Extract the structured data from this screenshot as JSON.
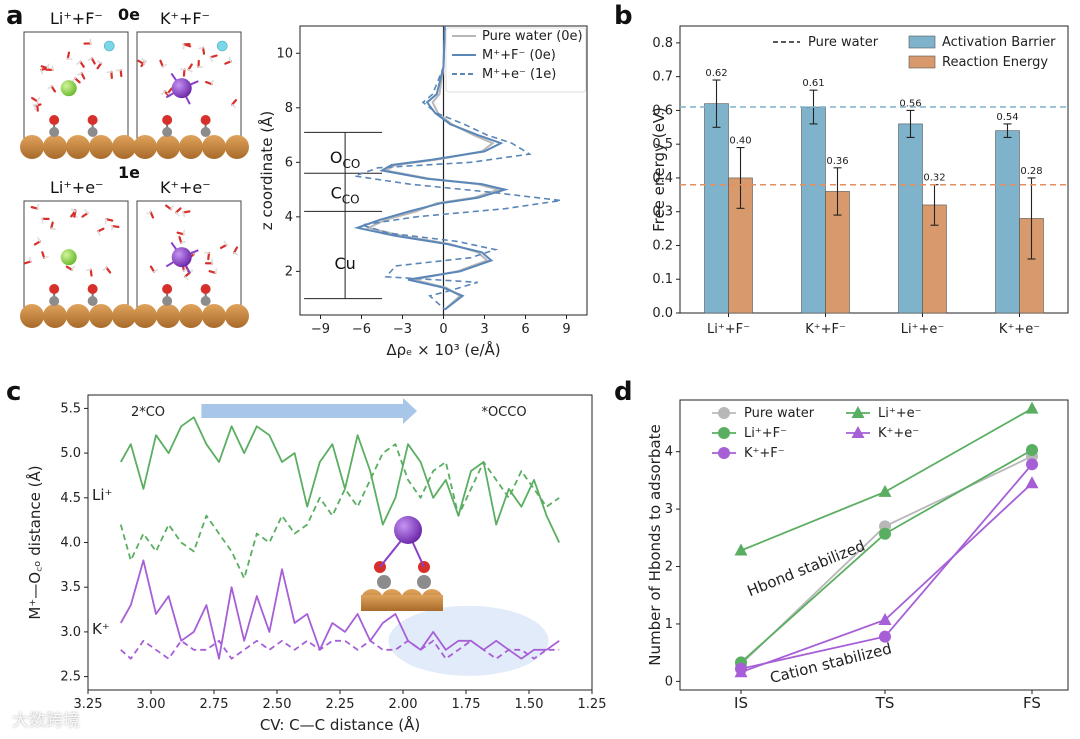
{
  "panel_labels": {
    "a": "a",
    "b": "b",
    "c": "c",
    "d": "d"
  },
  "panel_a": {
    "snapshot_titles": {
      "li_f": "Li⁺+F⁻",
      "k_f": "K⁺+F⁻",
      "li_e": "Li⁺+e⁻",
      "k_e": "K⁺+e⁻"
    },
    "charge_labels": {
      "zero": "0e",
      "one": "1e"
    },
    "colors": {
      "substrate": "#c8843a",
      "water_O": "#d7302a",
      "li": "#8dd64a",
      "k": "#8a3fc6",
      "f": "#7ad7e8",
      "C": "#8c8c8c"
    }
  },
  "watermark": "大数跨境",
  "chart_data": [
    {
      "id": "a_profile",
      "type": "line",
      "xlabel": "Δρₑ × 10³ (e/Å)",
      "ylabel": "z coordinate (Å)",
      "xlim": [
        -10.5,
        10.5
      ],
      "ylim": [
        0.4,
        11.0
      ],
      "xticks": [
        -9,
        -6,
        -3,
        0,
        3,
        6,
        9
      ],
      "xtick_labels": [
        "−9",
        "−6",
        "−3",
        "0",
        "3",
        "6",
        "9"
      ],
      "yticks": [
        2,
        4,
        6,
        8,
        10
      ],
      "region_labels": [
        {
          "text": "O",
          "sub": "CO",
          "z": 6.2
        },
        {
          "text": "C",
          "sub": "CO",
          "z": 4.9
        },
        {
          "text": "Cu",
          "sub": "",
          "z": 2.3
        }
      ],
      "region_boundaries": [
        1.0,
        4.2,
        5.6,
        7.1
      ],
      "legend_location": "top-right",
      "series": [
        {
          "name": "Pure water (0e)",
          "color": "#b8b8b8",
          "style": "solid",
          "points": [
            [
              0.1,
              11.0
            ],
            [
              0.0,
              9.5
            ],
            [
              -0.3,
              8.5
            ],
            [
              -0.8,
              8.2
            ],
            [
              -0.4,
              7.8
            ],
            [
              0.6,
              7.4
            ],
            [
              2.2,
              7.0
            ],
            [
              3.6,
              6.7
            ],
            [
              2.8,
              6.4
            ],
            [
              -0.5,
              6.1
            ],
            [
              -3.5,
              5.9
            ],
            [
              -4.2,
              5.7
            ],
            [
              -1.0,
              5.4
            ],
            [
              2.5,
              5.2
            ],
            [
              4.0,
              5.0
            ],
            [
              2.2,
              4.7
            ],
            [
              -0.5,
              4.5
            ],
            [
              -2.0,
              4.2
            ],
            [
              -4.2,
              3.9
            ],
            [
              -5.5,
              3.6
            ],
            [
              -3.0,
              3.3
            ],
            [
              0.5,
              3.0
            ],
            [
              2.5,
              2.7
            ],
            [
              3.2,
              2.4
            ],
            [
              1.0,
              2.0
            ],
            [
              -2.2,
              1.7
            ],
            [
              0.2,
              1.4
            ],
            [
              1.2,
              1.1
            ],
            [
              0.1,
              0.6
            ]
          ]
        },
        {
          "name": "M⁺+F⁻ (0e)",
          "color": "#5a86b8",
          "style": "solid",
          "points": [
            [
              0.1,
              11.0
            ],
            [
              0.0,
              9.5
            ],
            [
              -0.5,
              8.5
            ],
            [
              -1.2,
              8.2
            ],
            [
              -0.6,
              7.8
            ],
            [
              0.5,
              7.4
            ],
            [
              2.5,
              7.0
            ],
            [
              4.2,
              6.7
            ],
            [
              3.0,
              6.4
            ],
            [
              -0.8,
              6.1
            ],
            [
              -3.8,
              5.9
            ],
            [
              -4.5,
              5.7
            ],
            [
              -1.2,
              5.4
            ],
            [
              2.8,
              5.2
            ],
            [
              4.5,
              5.0
            ],
            [
              2.5,
              4.7
            ],
            [
              -0.2,
              4.5
            ],
            [
              -2.5,
              4.2
            ],
            [
              -4.6,
              3.9
            ],
            [
              -6.3,
              3.6
            ],
            [
              -3.5,
              3.3
            ],
            [
              0.3,
              3.0
            ],
            [
              2.8,
              2.7
            ],
            [
              3.5,
              2.4
            ],
            [
              1.2,
              2.0
            ],
            [
              -2.6,
              1.7
            ],
            [
              0.0,
              1.4
            ],
            [
              1.4,
              1.1
            ],
            [
              0.1,
              0.6
            ]
          ]
        },
        {
          "name": "M⁺+e⁻ (1e)",
          "color": "#5a86b8",
          "style": "dashed",
          "points": [
            [
              0.1,
              11.0
            ],
            [
              0.0,
              9.5
            ],
            [
              -0.8,
              8.5
            ],
            [
              -1.5,
              8.2
            ],
            [
              -0.5,
              7.8
            ],
            [
              1.5,
              7.4
            ],
            [
              3.2,
              7.0
            ],
            [
              5.0,
              6.7
            ],
            [
              6.3,
              6.3
            ],
            [
              2.0,
              6.0
            ],
            [
              -4.8,
              5.8
            ],
            [
              -6.5,
              5.5
            ],
            [
              -2.5,
              5.2
            ],
            [
              3.5,
              4.9
            ],
            [
              8.6,
              4.6
            ],
            [
              4.5,
              4.3
            ],
            [
              -2.0,
              4.0
            ],
            [
              -6.0,
              3.7
            ],
            [
              -4.0,
              3.4
            ],
            [
              1.0,
              3.1
            ],
            [
              3.8,
              2.8
            ],
            [
              2.0,
              2.5
            ],
            [
              -3.5,
              2.2
            ],
            [
              -4.2,
              1.8
            ],
            [
              2.5,
              1.6
            ],
            [
              0.5,
              1.3
            ],
            [
              -1.0,
              1.1
            ],
            [
              0.1,
              0.6
            ]
          ]
        }
      ]
    },
    {
      "id": "b_bars",
      "type": "bar",
      "ylabel": "Free energy (eV)",
      "ylim": [
        0.0,
        0.85
      ],
      "yticks": [
        0.0,
        0.1,
        0.2,
        0.3,
        0.4,
        0.5,
        0.6,
        0.7,
        0.8
      ],
      "ytick_labels": [
        "0.0",
        "0.1",
        "0.2",
        "0.3",
        "0.4",
        "0.5",
        "0.6",
        "0.7",
        "0.8"
      ],
      "categories": [
        "Li⁺+F⁻",
        "K⁺+F⁻",
        "Li⁺+e⁻",
        "K⁺+e⁻"
      ],
      "legend_location": "top",
      "series": [
        {
          "name": "Activation Barrier",
          "color": "#7fb3cc",
          "values": [
            0.62,
            0.61,
            0.56,
            0.54
          ],
          "errors": [
            0.07,
            0.05,
            0.04,
            0.02
          ],
          "labels": [
            "0.62",
            "0.61",
            "0.56",
            "0.54"
          ]
        },
        {
          "name": "Reaction Energy",
          "color": "#d89a6c",
          "values": [
            0.4,
            0.36,
            0.32,
            0.28
          ],
          "errors": [
            0.09,
            0.07,
            0.06,
            0.12
          ],
          "labels": [
            "0.40",
            "0.36",
            "0.32",
            "0.28"
          ]
        }
      ],
      "reference": {
        "name": "Pure water",
        "barrier": 0.61,
        "reaction": 0.38,
        "barrier_color": "#7fb3cc",
        "reaction_color": "#e58e5e"
      }
    },
    {
      "id": "c_distance",
      "type": "line",
      "xlabel": "CV: C—C distance (Å)",
      "ylabel": "M⁺—O꜀ₒ distance (Å)",
      "xlim": [
        3.25,
        1.25
      ],
      "ylim": [
        2.35,
        5.65
      ],
      "xticks": [
        3.25,
        3.0,
        2.75,
        2.5,
        2.25,
        2.0,
        1.75,
        1.5,
        1.25
      ],
      "xtick_labels": [
        "3.25",
        "3.00",
        "2.75",
        "2.50",
        "2.25",
        "2.00",
        "1.75",
        "1.50",
        "1.25"
      ],
      "yticks": [
        2.5,
        3.0,
        3.5,
        4.0,
        4.5,
        5.0,
        5.5
      ],
      "ytick_labels": [
        "2.5",
        "3.0",
        "3.5",
        "4.0",
        "4.5",
        "5.0",
        "5.5"
      ],
      "annotations": {
        "start": "2*CO",
        "end": "*OCCO",
        "li": "Li⁺",
        "k": "K⁺"
      },
      "colors": {
        "li": "#5aae61",
        "k": "#a65fd6",
        "arrow": "#a8c6e8",
        "shade": "#dbe6f7"
      },
      "series": [
        {
          "name": "Li⁺ solid",
          "color": "#5aae61",
          "style": "solid",
          "x": [
            3.12,
            3.08,
            3.03,
            2.98,
            2.93,
            2.88,
            2.83,
            2.78,
            2.73,
            2.68,
            2.63,
            2.58,
            2.53,
            2.48,
            2.43,
            2.38,
            2.33,
            2.28,
            2.23,
            2.18,
            2.13,
            2.08,
            2.03,
            1.98,
            1.93,
            1.88,
            1.83,
            1.78,
            1.73,
            1.68,
            1.63,
            1.58,
            1.53,
            1.48,
            1.43,
            1.38
          ],
          "y": [
            4.9,
            5.1,
            4.6,
            5.2,
            5.0,
            5.3,
            5.4,
            5.1,
            4.9,
            5.3,
            5.0,
            5.3,
            5.2,
            4.9,
            5.0,
            4.4,
            4.9,
            5.1,
            4.6,
            5.2,
            4.8,
            4.2,
            4.5,
            5.1,
            4.9,
            4.5,
            4.7,
            4.3,
            4.8,
            4.9,
            4.2,
            4.6,
            4.4,
            4.7,
            4.3,
            4.0
          ]
        },
        {
          "name": "Li⁺ dashed",
          "color": "#5aae61",
          "style": "dashed",
          "x": [
            3.12,
            3.08,
            3.03,
            2.98,
            2.93,
            2.88,
            2.83,
            2.78,
            2.73,
            2.68,
            2.63,
            2.58,
            2.53,
            2.48,
            2.43,
            2.38,
            2.33,
            2.28,
            2.23,
            2.18,
            2.13,
            2.08,
            2.03,
            1.98,
            1.93,
            1.88,
            1.83,
            1.78,
            1.73,
            1.68,
            1.63,
            1.58,
            1.53,
            1.48,
            1.43,
            1.38
          ],
          "y": [
            4.2,
            3.8,
            4.1,
            3.9,
            4.2,
            4.0,
            3.9,
            4.3,
            4.1,
            3.9,
            3.6,
            4.1,
            4.0,
            4.3,
            4.1,
            4.2,
            4.5,
            4.3,
            4.6,
            4.4,
            4.7,
            5.0,
            5.1,
            4.7,
            4.5,
            4.8,
            4.9,
            4.3,
            4.6,
            4.9,
            4.7,
            4.5,
            4.8,
            4.6,
            4.4,
            4.5
          ]
        },
        {
          "name": "K⁺ solid",
          "color": "#a65fd6",
          "style": "solid",
          "x": [
            3.12,
            3.08,
            3.03,
            2.98,
            2.93,
            2.88,
            2.83,
            2.78,
            2.73,
            2.68,
            2.63,
            2.58,
            2.53,
            2.48,
            2.43,
            2.38,
            2.33,
            2.28,
            2.23,
            2.18,
            2.13,
            2.08,
            2.03,
            1.98,
            1.93,
            1.88,
            1.83,
            1.78,
            1.73,
            1.68,
            1.63,
            1.58,
            1.53,
            1.48,
            1.43,
            1.38
          ],
          "y": [
            3.1,
            3.3,
            3.8,
            3.2,
            3.4,
            2.9,
            3.0,
            3.3,
            2.7,
            3.5,
            2.9,
            3.4,
            3.0,
            3.7,
            3.1,
            3.2,
            2.8,
            3.1,
            3.0,
            3.2,
            2.9,
            3.1,
            3.2,
            2.9,
            2.8,
            3.0,
            2.8,
            2.9,
            2.9,
            2.8,
            2.9,
            2.8,
            2.7,
            2.8,
            2.8,
            2.9
          ]
        },
        {
          "name": "K⁺ dashed",
          "color": "#a65fd6",
          "style": "dashed",
          "x": [
            3.12,
            3.08,
            3.03,
            2.98,
            2.93,
            2.88,
            2.83,
            2.78,
            2.73,
            2.68,
            2.63,
            2.58,
            2.53,
            2.48,
            2.43,
            2.38,
            2.33,
            2.28,
            2.23,
            2.18,
            2.13,
            2.08,
            2.03,
            1.98,
            1.93,
            1.88,
            1.83,
            1.78,
            1.73,
            1.68,
            1.63,
            1.58,
            1.53,
            1.48,
            1.43,
            1.38
          ],
          "y": [
            2.8,
            2.7,
            2.9,
            2.8,
            2.7,
            2.9,
            2.8,
            2.8,
            2.9,
            2.7,
            2.8,
            2.9,
            2.8,
            2.9,
            2.8,
            2.9,
            2.8,
            2.9,
            2.9,
            2.8,
            2.9,
            2.8,
            2.8,
            2.9,
            2.8,
            2.9,
            2.7,
            2.8,
            2.9,
            2.8,
            2.7,
            2.8,
            2.8,
            2.7,
            2.8,
            2.8
          ]
        }
      ]
    },
    {
      "id": "d_hbonds",
      "type": "line",
      "ylabel": "Number of Hbonds to adsorbate",
      "categories": [
        "IS",
        "TS",
        "FS"
      ],
      "ylim": [
        -0.15,
        4.9
      ],
      "yticks": [
        0,
        1,
        2,
        3,
        4
      ],
      "annotations": {
        "green": "Hbond stabilized",
        "purple": "Cation stabilized"
      },
      "legend_location": "top-left",
      "series": [
        {
          "name": "Pure water",
          "color": "#b8b8b8",
          "marker": "circle",
          "values": [
            0.3,
            2.7,
            3.92
          ]
        },
        {
          "name": "Li⁺+F⁻",
          "color": "#5aae61",
          "marker": "circle",
          "values": [
            0.33,
            2.57,
            4.03
          ]
        },
        {
          "name": "K⁺+F⁻",
          "color": "#a65fd6",
          "marker": "circle",
          "values": [
            0.22,
            0.78,
            3.78
          ]
        },
        {
          "name": "Li⁺+e⁻",
          "color": "#5aae61",
          "marker": "triangle",
          "values": [
            2.28,
            3.3,
            4.75
          ]
        },
        {
          "name": "K⁺+e⁻",
          "color": "#a65fd6",
          "marker": "triangle",
          "values": [
            0.16,
            1.07,
            3.45
          ]
        }
      ]
    }
  ]
}
